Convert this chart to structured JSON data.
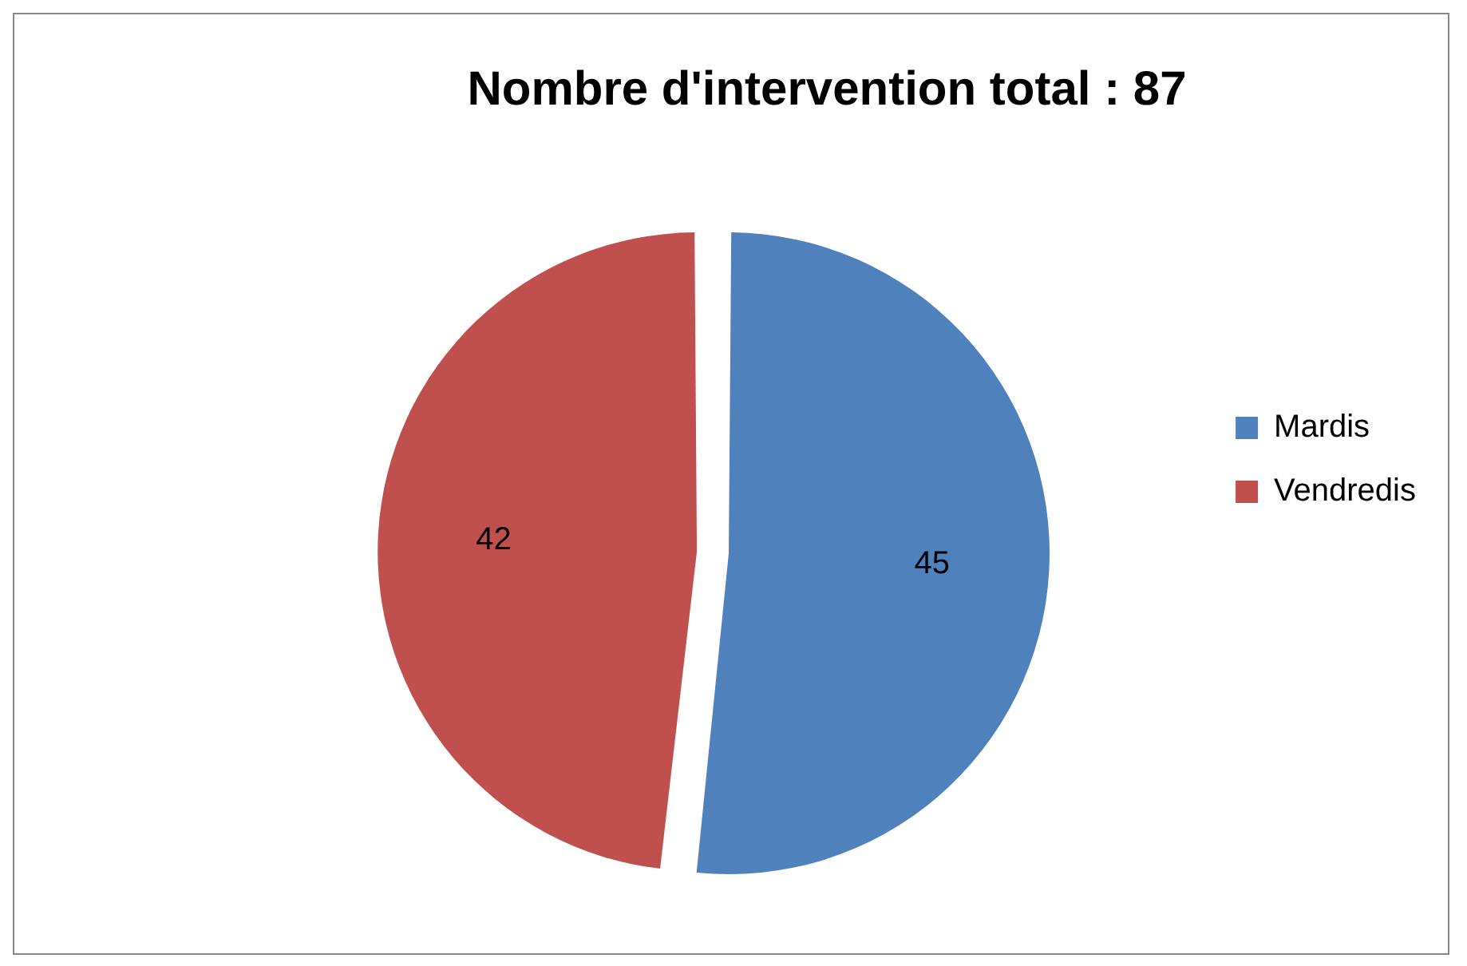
{
  "chart_data": {
    "type": "pie",
    "title": "Nombre d'intervention total : 87",
    "categories": [
      "Mardis",
      "Vendredis"
    ],
    "values": [
      45,
      42
    ],
    "colors": [
      "#4f81bd",
      "#c0504d"
    ],
    "data_labels": true,
    "legend": "right"
  }
}
